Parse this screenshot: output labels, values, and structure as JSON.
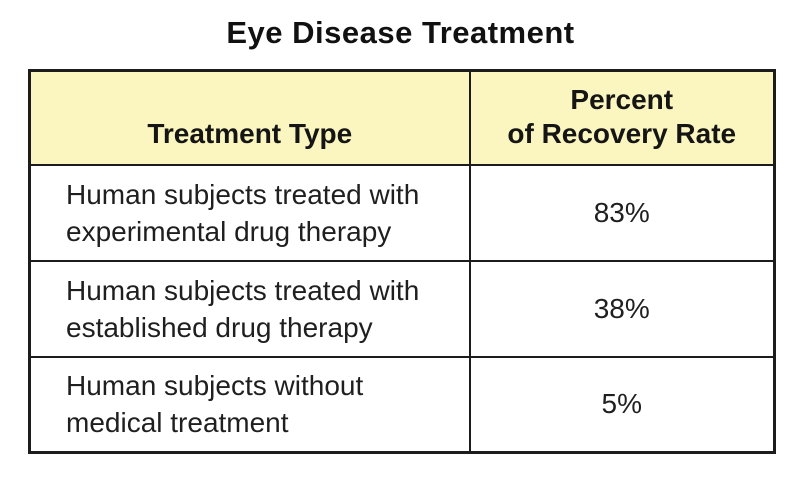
{
  "page_title": "Eye Disease Treatment",
  "table": {
    "header": {
      "treatment_type": "Treatment Type",
      "percent_line1": "Percent",
      "percent_line2": "of Recovery Rate"
    },
    "rows": [
      {
        "line1": "Human subjects treated with",
        "line2": "experimental drug therapy",
        "percent": "83%"
      },
      {
        "line1": "Human subjects treated with",
        "line2": "established drug therapy",
        "percent": "38%"
      },
      {
        "line1": "Human subjects without",
        "line2": "medical treatment",
        "percent": "5%"
      }
    ]
  },
  "colors": {
    "page_bg": "#FFFFFF",
    "header_bg": "#FBF6BF",
    "border": "#1C1C1C",
    "text": "#1F1F1F"
  },
  "chart_data": {
    "type": "table",
    "title": "Eye Disease Treatment",
    "columns": [
      "Treatment Type",
      "Percent of Recovery Rate"
    ],
    "rows": [
      [
        "Human subjects treated with experimental drug therapy",
        "83%"
      ],
      [
        "Human subjects treated with established drug therapy",
        "38%"
      ],
      [
        "Human subjects without medical treatment",
        "5%"
      ]
    ],
    "values_percent": [
      83,
      38,
      5
    ]
  }
}
